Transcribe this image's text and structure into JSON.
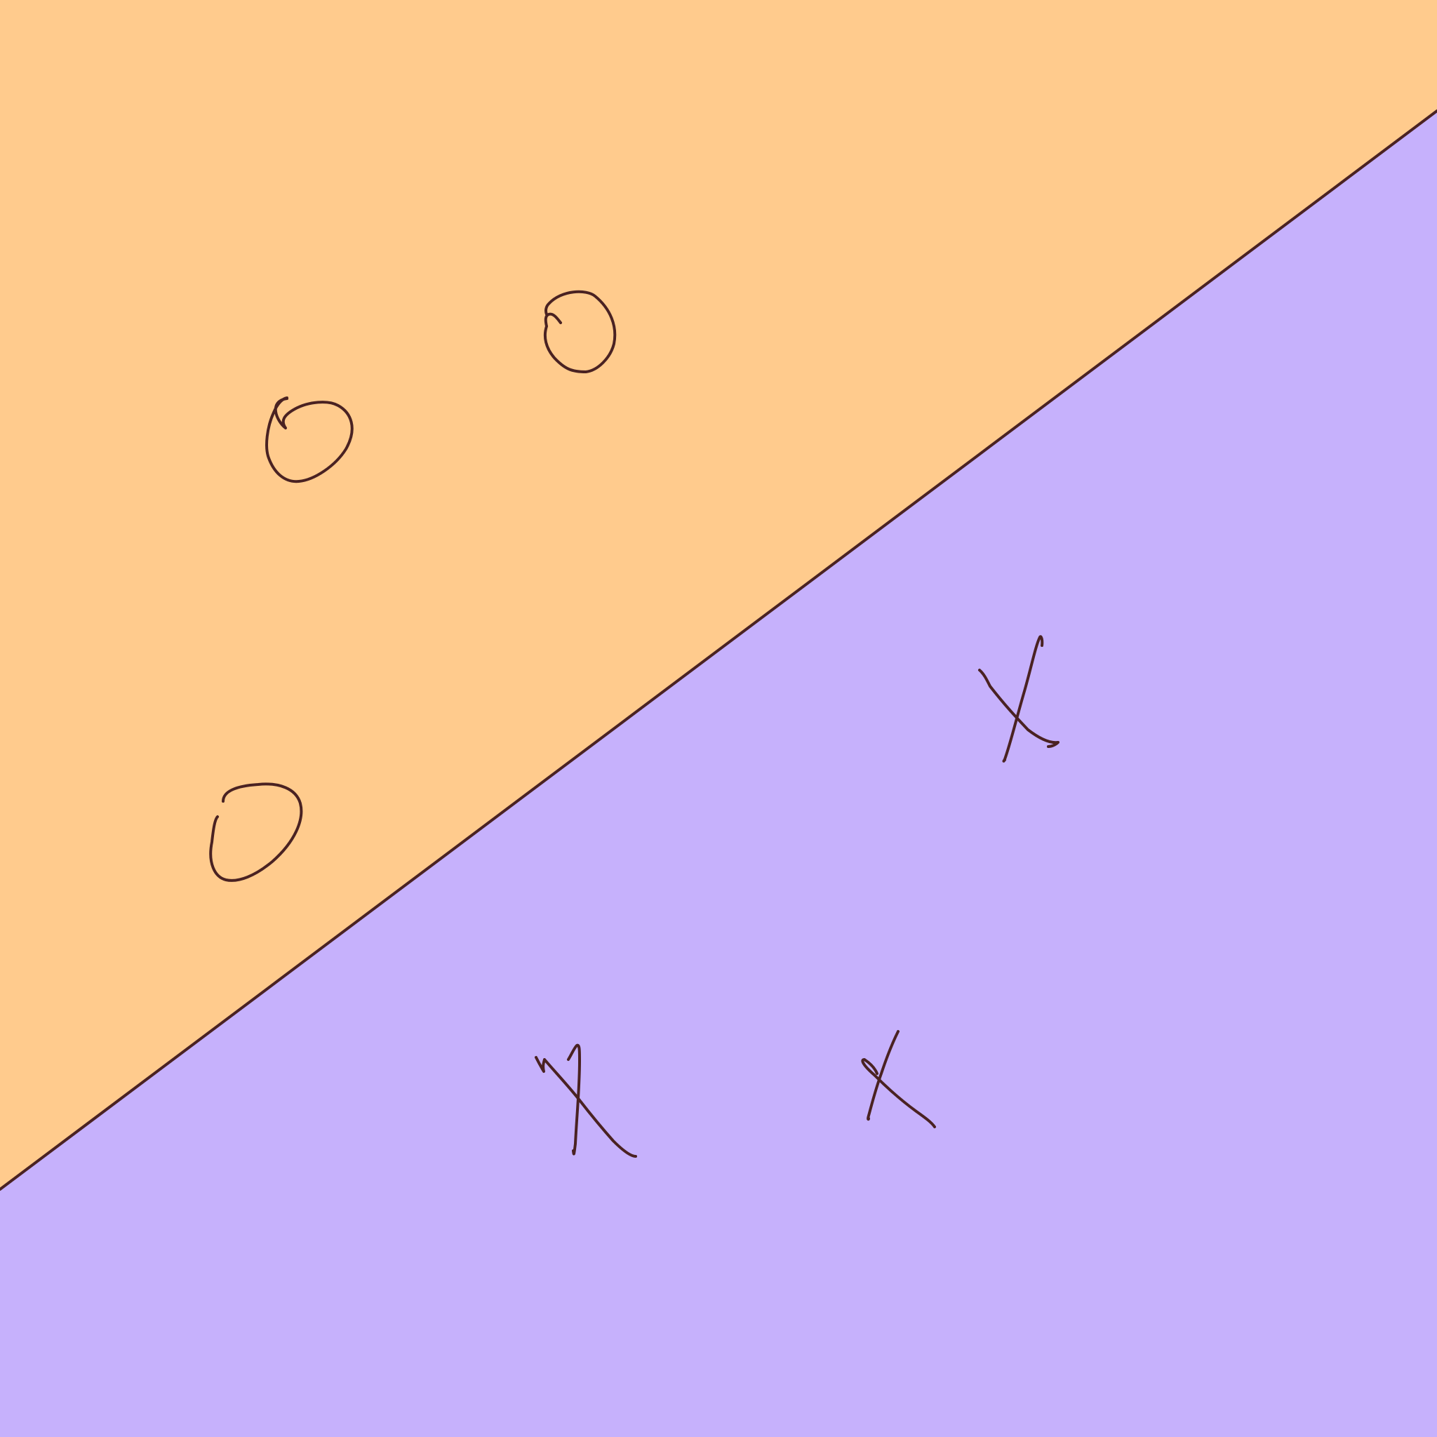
{
  "diagram": {
    "kind": "linear decision boundary separating two classes",
    "colors": {
      "region_upper": "#FFCB8D",
      "region_lower": "#C6B1FC",
      "ink": "#4A2222"
    },
    "classes": [
      {
        "symbol": "O",
        "region": "upper",
        "count": 3
      },
      {
        "symbol": "X",
        "region": "lower",
        "count": 3
      }
    ]
  }
}
